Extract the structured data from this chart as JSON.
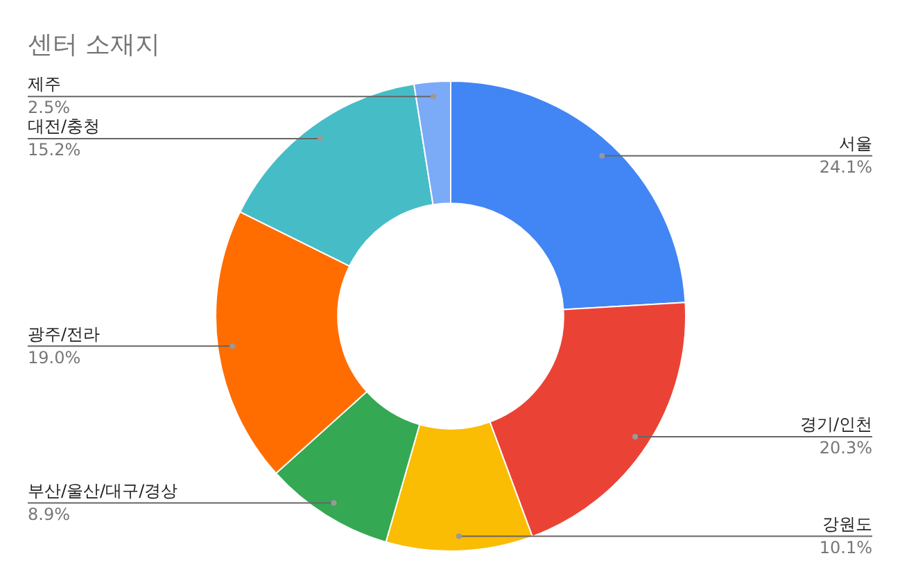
{
  "chart_data": {
    "type": "donut",
    "title": "센터 소재지",
    "categories": [
      "서울",
      "경기/인천",
      "강원도",
      "부산/울산/대구/경상",
      "광주/전라",
      "대전/충청",
      "제주"
    ],
    "values": [
      24.1,
      20.3,
      10.1,
      8.9,
      19.0,
      15.2,
      2.5
    ],
    "colors": [
      "#4285f4",
      "#ea4335",
      "#fbbc04",
      "#34a853",
      "#ff6d01",
      "#46bdc6",
      "#7baaf7"
    ],
    "value_labels": [
      "24.1%",
      "20.3%",
      "10.1%",
      "8.9%",
      "19.0%",
      "15.2%",
      "2.5%"
    ],
    "legend": false
  }
}
